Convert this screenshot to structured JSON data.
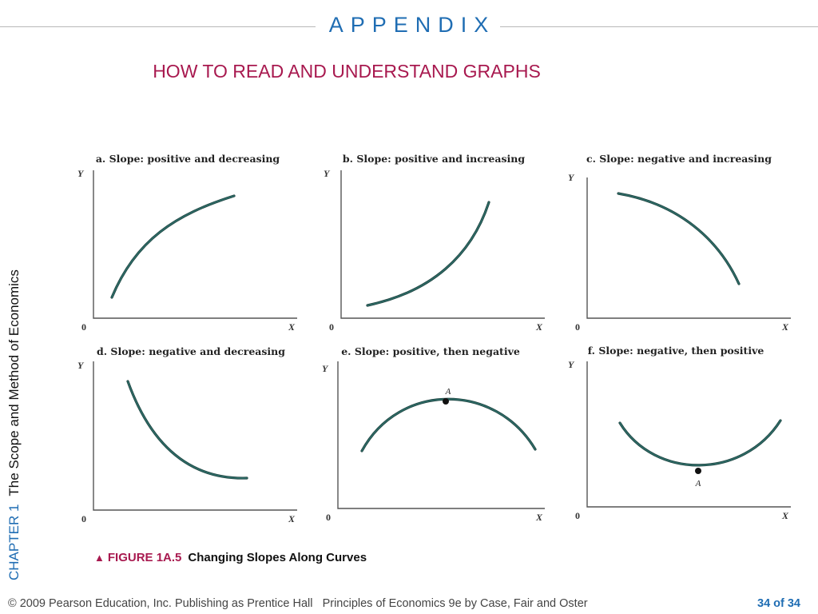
{
  "header": {
    "appendix": "APPENDIX",
    "subtitle": "HOW TO READ AND UNDERSTAND GRAPHS"
  },
  "side": {
    "chapter": "CHAPTER 1",
    "title": "The Scope and Method of Economics"
  },
  "panels": [
    {
      "title": "a. Slope: positive and decreasing",
      "y_label": "Y",
      "x_label": "X",
      "origin": "0",
      "curve": "concave-increasing",
      "point_label": ""
    },
    {
      "title": "b. Slope: positive and increasing",
      "y_label": "Y",
      "x_label": "X",
      "origin": "0",
      "curve": "convex-increasing",
      "point_label": ""
    },
    {
      "title": "c. Slope: negative and increasing",
      "y_label": "Y",
      "x_label": "X",
      "origin": "0",
      "curve": "concave-decreasing",
      "point_label": ""
    },
    {
      "title": "d. Slope: negative and decreasing",
      "y_label": "Y",
      "x_label": "X",
      "origin": "0",
      "curve": "convex-decreasing",
      "point_label": ""
    },
    {
      "title": "e. Slope: positive, then negative",
      "y_label": "Y",
      "x_label": "X",
      "origin": "0",
      "curve": "hill",
      "point_label": "A"
    },
    {
      "title": "f. Slope: negative, then positive",
      "y_label": "Y",
      "x_label": "X",
      "origin": "0",
      "curve": "valley",
      "point_label": "A"
    }
  ],
  "figure": {
    "number": "FIGURE 1A.5",
    "caption": "Changing Slopes Along Curves"
  },
  "footer": {
    "copyright": "© 2009 Pearson Education, Inc. Publishing as Prentice Hall",
    "book": "Principles of Economics 9e by Case, Fair and Oster",
    "page": "34 of 34"
  },
  "colors": {
    "accent_blue": "#1f6db3",
    "accent_magenta": "#a8194f",
    "curve": "#2e6b66"
  }
}
